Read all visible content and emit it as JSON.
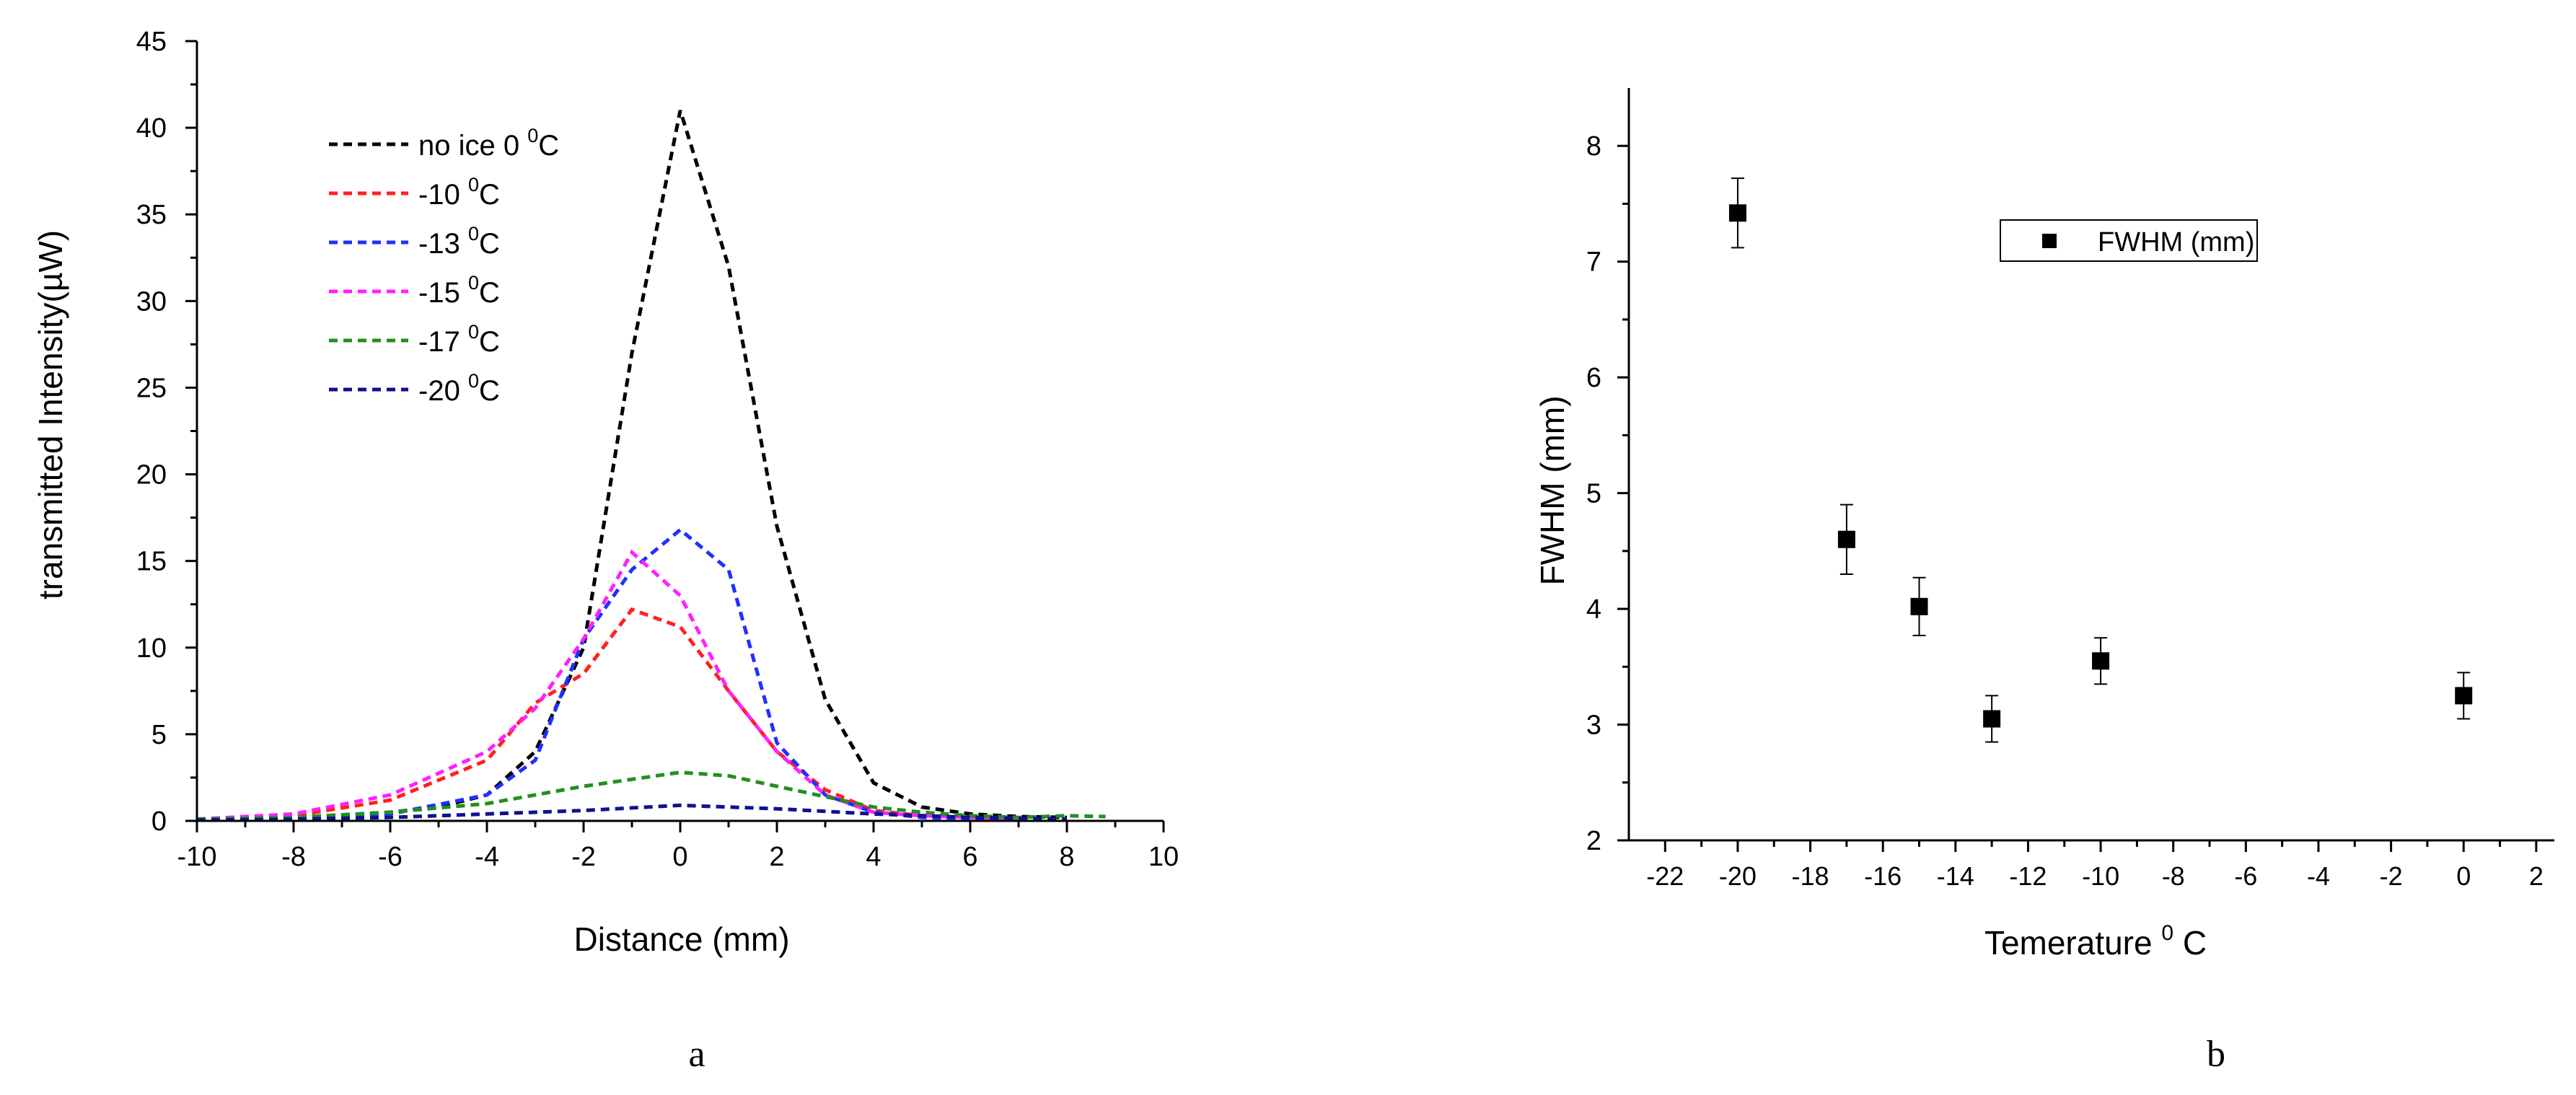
{
  "figure": {
    "panel_a_label": "a",
    "panel_b_label": "b"
  },
  "chart_data": [
    {
      "type": "line",
      "panel": "a",
      "title": "",
      "xlabel": "Distance (mm)",
      "ylabel_prefix": "transmitted Intensity(",
      "ylabel_unit": "µW",
      "ylabel_suffix": ")",
      "xlim": [
        -10,
        10
      ],
      "ylim": [
        0,
        45
      ],
      "xticks": [
        -10,
        -8,
        -6,
        -4,
        -2,
        0,
        2,
        4,
        6,
        8,
        10
      ],
      "yticks": [
        0,
        5,
        10,
        15,
        20,
        25,
        30,
        35,
        40,
        45
      ],
      "grid": false,
      "legend_position": "top-left",
      "line_style": "dashed",
      "series": [
        {
          "name_main": "no ice 0 ",
          "name_sup": "0",
          "name_unit": "C",
          "color": "#000000",
          "x": [
            -10,
            -8,
            -6,
            -5,
            -4,
            -3,
            -2,
            -1,
            0,
            1,
            2,
            3,
            4,
            5,
            6,
            7,
            8
          ],
          "y": [
            0.1,
            0.2,
            0.5,
            0.8,
            1.5,
            4,
            10,
            27,
            41,
            32,
            17,
            7,
            2.2,
            0.8,
            0.4,
            0.25,
            0.2
          ]
        },
        {
          "name_main": "-10 ",
          "name_sup": "0",
          "name_unit": "C",
          "color": "#ff2020",
          "x": [
            -10,
            -8,
            -6,
            -4,
            -3,
            -2,
            -1,
            0,
            1,
            2,
            3,
            4,
            5,
            6,
            7
          ],
          "y": [
            0.1,
            0.3,
            1.2,
            3.5,
            6.8,
            8.5,
            12.2,
            11.2,
            7.5,
            4.0,
            1.8,
            0.6,
            0.3,
            0.2,
            0.15
          ]
        },
        {
          "name_main": "-13 ",
          "name_sup": "0",
          "name_unit": "C",
          "color": "#2030ff",
          "x": [
            -10,
            -8,
            -6,
            -4,
            -3,
            -2,
            -1,
            0,
            1,
            2,
            3,
            4,
            5,
            6,
            7
          ],
          "y": [
            0.05,
            0.1,
            0.4,
            1.5,
            3.5,
            10.5,
            14.5,
            16.8,
            14.5,
            4.5,
            1.5,
            0.5,
            0.2,
            0.1,
            0.1
          ]
        },
        {
          "name_main": "-15 ",
          "name_sup": "0",
          "name_unit": "C",
          "color": "#ff20ff",
          "x": [
            -10,
            -8,
            -6,
            -4,
            -3,
            -2,
            -1,
            0,
            1,
            2,
            3,
            4,
            5,
            6,
            7
          ],
          "y": [
            0.1,
            0.4,
            1.5,
            4.0,
            6.5,
            10.5,
            15.5,
            13.0,
            7.5,
            4.0,
            1.5,
            0.5,
            0.3,
            0.2,
            0.1
          ]
        },
        {
          "name_main": "-17 ",
          "name_sup": "0",
          "name_unit": "C",
          "color": "#209020",
          "x": [
            -10,
            -8,
            -6,
            -4,
            -2,
            0,
            1,
            2,
            3,
            4,
            5,
            6,
            7,
            8,
            8.8
          ],
          "y": [
            0.1,
            0.2,
            0.5,
            1.0,
            2.0,
            2.8,
            2.6,
            2.0,
            1.4,
            0.8,
            0.5,
            0.3,
            0.2,
            0.3,
            0.25
          ]
        },
        {
          "name_main": "-20 ",
          "name_sup": "0",
          "name_unit": "C",
          "color": "#101090",
          "x": [
            -10,
            -8,
            -6,
            -4,
            -2,
            0,
            2,
            4,
            6,
            7,
            8
          ],
          "y": [
            0.05,
            0.1,
            0.2,
            0.4,
            0.6,
            0.9,
            0.7,
            0.4,
            0.2,
            0.15,
            0.1
          ]
        }
      ]
    },
    {
      "type": "scatter",
      "panel": "b",
      "title": "",
      "xlabel_main": "Temerature ",
      "xlabel_sup": "0",
      "xlabel_unit": " C",
      "ylabel": "FWHM (mm)",
      "xlim": [
        -23,
        2.5
      ],
      "ylim": [
        2,
        8.5
      ],
      "xticks": [
        -22,
        -20,
        -18,
        -16,
        -14,
        -12,
        -10,
        -8,
        -6,
        -4,
        -2,
        0,
        2
      ],
      "yticks": [
        2,
        3,
        4,
        5,
        6,
        7,
        8
      ],
      "grid": false,
      "legend_position": "top-right",
      "marker": "square",
      "series": [
        {
          "name": "FWHM (mm)",
          "color": "#000000",
          "x": [
            -20,
            -17,
            -15,
            -13,
            -10,
            0
          ],
          "y": [
            7.42,
            4.6,
            4.02,
            3.05,
            3.55,
            3.25
          ],
          "err": [
            0.3,
            0.3,
            0.25,
            0.2,
            0.2,
            0.2
          ]
        }
      ]
    }
  ]
}
